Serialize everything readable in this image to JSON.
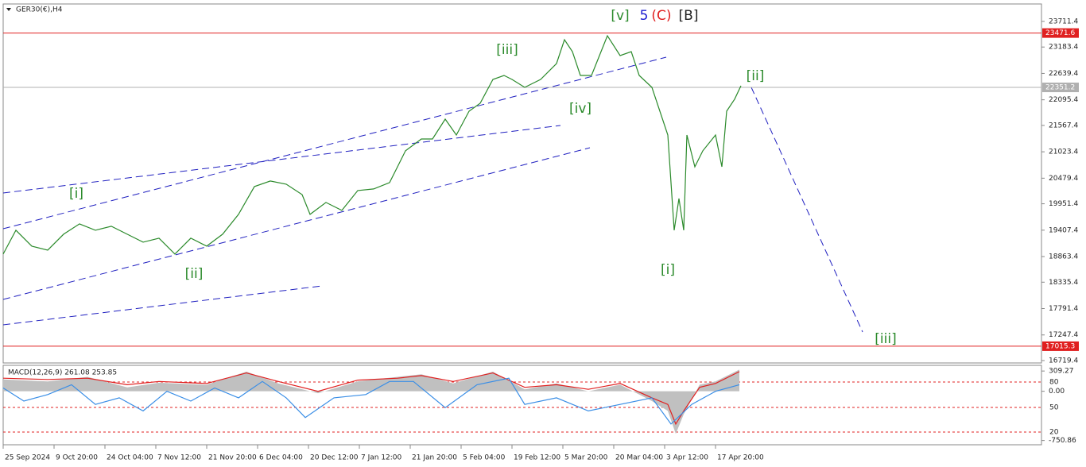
{
  "chart_data": [
    {
      "type": "line",
      "title": "GER30(€),H4",
      "color": "#2b8a2b",
      "x": [
        0,
        8,
        18,
        28,
        38,
        48,
        58,
        68,
        78,
        88,
        98,
        108,
        118,
        128,
        138,
        148,
        158,
        168,
        178,
        188,
        193,
        203,
        213,
        223,
        233,
        243,
        248,
        253,
        263,
        270,
        278,
        285,
        293,
        300,
        308,
        315,
        320,
        328,
        338,
        348,
        353,
        358,
        363,
        370,
        375,
        380,
        388,
        395,
        400,
        408,
        413,
        418,
        422,
        425,
        428,
        430,
        435,
        440,
        448,
        452,
        455,
        460,
        464
      ],
      "values": [
        18915,
        19406,
        19078,
        18996,
        19324,
        19537,
        19406,
        19488,
        19324,
        19160,
        19242,
        18915,
        19242,
        19078,
        19324,
        19733,
        20306,
        20421,
        20355,
        20142,
        19733,
        19979,
        19815,
        20224,
        20257,
        20388,
        20715,
        21043,
        21288,
        21288,
        21697,
        21370,
        21861,
        22025,
        22516,
        22598,
        22516,
        22352,
        22516,
        22843,
        23334,
        23089,
        22598,
        22598,
        23007,
        23416,
        23007,
        23089,
        22598,
        22352,
        21861,
        21370,
        19406,
        20060,
        19406,
        21370,
        20715,
        21043,
        21370,
        20715,
        21861,
        22107,
        22385
      ],
      "xlim": [
        0,
        653
      ],
      "ylim": [
        16670,
        24071
      ],
      "xticks": [
        {
          "value": 0,
          "label": "25 Sep 2024"
        },
        {
          "value": 32,
          "label": "9 Oct 20:00"
        },
        {
          "value": 64,
          "label": "24 Oct 04:00"
        },
        {
          "value": 96,
          "label": "7 Nov 12:00"
        },
        {
          "value": 128,
          "label": "21 Nov 20:00"
        },
        {
          "value": 160,
          "label": "6 Dec 04:00"
        },
        {
          "value": 192,
          "label": "20 Dec 12:00"
        },
        {
          "value": 224,
          "label": "7 Jan 12:00"
        },
        {
          "value": 256,
          "label": "21 Jan 20:00"
        },
        {
          "value": 288,
          "label": "5 Feb 04:00"
        },
        {
          "value": 320,
          "label": "19 Feb 12:00"
        },
        {
          "value": 352,
          "label": "5 Mar 20:00"
        },
        {
          "value": 384,
          "label": "20 Mar 04:00"
        },
        {
          "value": 416,
          "label": "3 Apr 12:00"
        },
        {
          "value": 448,
          "label": "17 Apr 20:00"
        }
      ],
      "yticks": [
        23711.4,
        23183.4,
        22639.4,
        22095.4,
        21567.4,
        21023.4,
        20479.4,
        19951.4,
        19407.4,
        18863.4,
        18335.4,
        17791.4,
        17247.4,
        16719.4
      ],
      "levels": [
        {
          "value": 23471.6,
          "color": "#e02020"
        },
        {
          "value": 22351.2,
          "color": "#b0b0b0"
        },
        {
          "value": 17015.3,
          "color": "#e02020"
        }
      ],
      "annotations": [
        {
          "text": "[i]",
          "color": "#2b8a2b",
          "x": 46,
          "y": 20159
        },
        {
          "text": "[ii]",
          "color": "#2b8a2b",
          "x": 120,
          "y": 18506
        },
        {
          "text": "[iii]",
          "color": "#2b8a2b",
          "x": 317,
          "y": 23122
        },
        {
          "text": "[iv]",
          "color": "#2b8a2b",
          "x": 363,
          "y": 21911
        },
        {
          "text": "[v]",
          "color": "#2b8a2b",
          "x": 388,
          "y": 23826
        },
        {
          "text": "5",
          "color": "#1a1ad0",
          "x": 403,
          "y": 23826
        },
        {
          "text": "(C)",
          "color": "#e02020",
          "x": 414,
          "y": 23826
        },
        {
          "text": "[B]",
          "color": "#222222",
          "x": 431,
          "y": 23826
        },
        {
          "text": "[i]",
          "color": "#2b8a2b",
          "x": 418,
          "y": 18588
        },
        {
          "text": "[ii]",
          "color": "#2b8a2b",
          "x": 473,
          "y": 22582
        },
        {
          "text": "[iii]",
          "color": "#2b8a2b",
          "x": 555,
          "y": 17163
        }
      ]
    },
    {
      "type": "line",
      "title": "MACD(12,26,9) 261.08 253.85",
      "xlim": [
        0,
        653
      ],
      "ylim": [
        -816,
        396
      ],
      "yticks": [
        309.27,
        {
          "value": 0,
          "label": "0.00"
        },
        -750.86
      ],
      "level_labels": [
        "80",
        "50",
        "20"
      ],
      "series": [
        {
          "color": "#c0c0c0",
          "x": [
            0,
            28,
            53,
            78,
            98,
            128,
            153,
            173,
            198,
            223,
            248,
            263,
            283,
            308,
            328,
            348,
            368,
            388,
            408,
            418,
            423,
            428,
            438,
            448,
            463
          ],
          "values": [
            180,
            150,
            220,
            60,
            130,
            100,
            300,
            120,
            -30,
            150,
            220,
            260,
            120,
            300,
            30,
            120,
            0,
            100,
            -150,
            -300,
            -650,
            -350,
            100,
            150,
            330
          ]
        },
        {
          "color": "#e02020",
          "x": [
            0,
            28,
            53,
            78,
            98,
            128,
            153,
            173,
            198,
            223,
            248,
            263,
            283,
            308,
            328,
            348,
            368,
            388,
            408,
            418,
            423,
            428,
            438,
            448,
            463
          ],
          "values": [
            200,
            180,
            200,
            100,
            150,
            120,
            280,
            150,
            0,
            170,
            200,
            240,
            150,
            280,
            60,
            100,
            30,
            120,
            -100,
            -200,
            -500,
            -300,
            60,
            120,
            300
          ]
        },
        {
          "color": "#3a8ee6",
          "x": [
            0,
            13,
            28,
            43,
            58,
            73,
            88,
            103,
            118,
            133,
            148,
            163,
            178,
            190,
            208,
            228,
            243,
            258,
            278,
            298,
            318,
            328,
            348,
            368,
            388,
            408,
            420,
            433,
            448,
            463
          ],
          "values": [
            50,
            -150,
            -50,
            100,
            -200,
            -100,
            -300,
            0,
            -150,
            50,
            -100,
            150,
            -100,
            -400,
            -100,
            -50,
            150,
            150,
            -250,
            100,
            200,
            -200,
            -100,
            -300,
            -200,
            -100,
            -500,
            -200,
            0,
            100
          ]
        }
      ]
    }
  ]
}
